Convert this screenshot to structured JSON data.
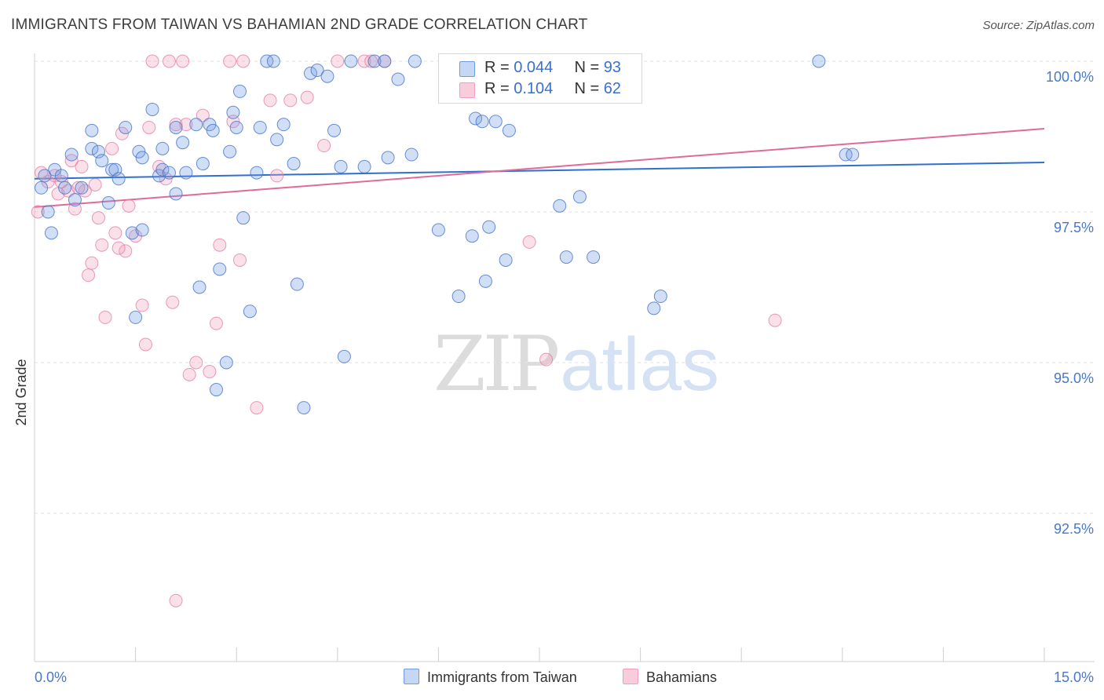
{
  "header": {
    "title": "IMMIGRANTS FROM TAIWAN VS BAHAMIAN 2ND GRADE CORRELATION CHART",
    "source": "Source: ZipAtlas.com"
  },
  "legend": {
    "series1": {
      "r_label": "R = ",
      "r_value": "0.044",
      "n_label": "N = ",
      "n_value": "93"
    },
    "series2": {
      "r_label": "R = ",
      "r_value": "0.104",
      "n_label": "N = ",
      "n_value": "62"
    }
  },
  "watermark": {
    "zip": "ZIP",
    "atlas": "atlas"
  },
  "chart_data": {
    "type": "scatter",
    "title": "IMMIGRANTS FROM TAIWAN VS BAHAMIAN 2ND GRADE CORRELATION CHART",
    "xlabel": "",
    "ylabel": "2nd Grade",
    "xlim": [
      0,
      15
    ],
    "ylim": [
      90.0,
      100.5
    ],
    "x_tick_labels": [
      "0.0%",
      "15.0%"
    ],
    "y_tick_labels": [
      "100.0%",
      "97.5%",
      "95.0%",
      "92.5%"
    ],
    "y_ticks": [
      100.0,
      97.5,
      95.0,
      92.5
    ],
    "grid": true,
    "legend_position": "top-center",
    "colors": {
      "taiwan": "#6f9be3",
      "bahamians": "#f0a0bc",
      "taiwan_line": "#2f6fcf",
      "bahamians_line": "#e06a98"
    },
    "series": [
      {
        "name": "Immigrants from Taiwan",
        "color": "#6f9be3",
        "trend": {
          "x": [
            0,
            15
          ],
          "y": [
            98.05,
            98.32
          ]
        },
        "points": [
          [
            0.1,
            97.9
          ],
          [
            0.15,
            98.1
          ],
          [
            0.2,
            97.5
          ],
          [
            0.25,
            97.15
          ],
          [
            0.3,
            98.2
          ],
          [
            0.4,
            98.1
          ],
          [
            0.45,
            97.9
          ],
          [
            0.55,
            98.45
          ],
          [
            0.6,
            97.7
          ],
          [
            0.7,
            97.9
          ],
          [
            0.85,
            98.85
          ],
          [
            0.85,
            98.55
          ],
          [
            0.95,
            98.5
          ],
          [
            1.0,
            98.35
          ],
          [
            1.1,
            97.65
          ],
          [
            1.15,
            98.2
          ],
          [
            1.2,
            98.2
          ],
          [
            1.25,
            98.05
          ],
          [
            1.35,
            98.9
          ],
          [
            1.45,
            97.15
          ],
          [
            1.5,
            95.75
          ],
          [
            1.55,
            98.5
          ],
          [
            1.6,
            97.2
          ],
          [
            1.6,
            98.4
          ],
          [
            1.75,
            99.2
          ],
          [
            1.85,
            98.1
          ],
          [
            1.9,
            98.55
          ],
          [
            1.9,
            98.2
          ],
          [
            2.0,
            98.15
          ],
          [
            2.1,
            98.9
          ],
          [
            2.1,
            97.8
          ],
          [
            2.2,
            98.65
          ],
          [
            2.25,
            98.15
          ],
          [
            2.4,
            98.95
          ],
          [
            2.45,
            96.25
          ],
          [
            2.5,
            98.3
          ],
          [
            2.6,
            98.95
          ],
          [
            2.65,
            98.85
          ],
          [
            2.7,
            94.55
          ],
          [
            2.75,
            96.55
          ],
          [
            2.85,
            95.0
          ],
          [
            2.9,
            98.5
          ],
          [
            2.95,
            99.15
          ],
          [
            3.05,
            99.5
          ],
          [
            3.1,
            97.4
          ],
          [
            3.2,
            95.85
          ],
          [
            3.3,
            98.15
          ],
          [
            3.35,
            98.9
          ],
          [
            3.45,
            100.0
          ],
          [
            3.55,
            100.0
          ],
          [
            3.6,
            98.7
          ],
          [
            3.7,
            98.95
          ],
          [
            3.85,
            98.3
          ],
          [
            3.9,
            96.3
          ],
          [
            4.0,
            94.25
          ],
          [
            4.1,
            99.8
          ],
          [
            4.2,
            99.85
          ],
          [
            4.35,
            99.75
          ],
          [
            4.45,
            98.85
          ],
          [
            4.55,
            98.25
          ],
          [
            4.6,
            95.1
          ],
          [
            4.7,
            100.0
          ],
          [
            4.9,
            98.25
          ],
          [
            5.05,
            100.0
          ],
          [
            5.2,
            100.0
          ],
          [
            5.25,
            98.4
          ],
          [
            5.4,
            99.7
          ],
          [
            5.6,
            98.45
          ],
          [
            6.0,
            97.2
          ],
          [
            6.3,
            96.1
          ],
          [
            6.5,
            97.1
          ],
          [
            6.55,
            99.05
          ],
          [
            6.65,
            99.0
          ],
          [
            6.7,
            96.35
          ],
          [
            6.75,
            97.25
          ],
          [
            6.85,
            99.0
          ],
          [
            7.0,
            96.7
          ],
          [
            7.05,
            98.85
          ],
          [
            7.45,
            100.0
          ],
          [
            7.8,
            97.6
          ],
          [
            7.9,
            96.75
          ],
          [
            8.1,
            97.75
          ],
          [
            8.3,
            96.75
          ],
          [
            9.2,
            95.9
          ],
          [
            9.3,
            96.1
          ],
          [
            11.65,
            100.0
          ],
          [
            12.05,
            98.45
          ],
          [
            12.15,
            98.45
          ],
          [
            5.65,
            100.0
          ],
          [
            3.0,
            98.9
          ]
        ]
      },
      {
        "name": "Bahamians",
        "color": "#f0a0bc",
        "trend": {
          "x": [
            0,
            15
          ],
          "y": [
            97.58,
            98.88
          ]
        },
        "points": [
          [
            0.05,
            97.5
          ],
          [
            0.1,
            98.15
          ],
          [
            0.2,
            98.0
          ],
          [
            0.3,
            98.1
          ],
          [
            0.35,
            97.8
          ],
          [
            0.5,
            97.85
          ],
          [
            0.55,
            98.35
          ],
          [
            0.6,
            97.55
          ],
          [
            0.7,
            98.25
          ],
          [
            0.75,
            97.85
          ],
          [
            0.8,
            96.45
          ],
          [
            0.85,
            96.65
          ],
          [
            0.9,
            97.95
          ],
          [
            0.95,
            97.4
          ],
          [
            1.0,
            96.95
          ],
          [
            1.05,
            95.75
          ],
          [
            1.15,
            98.55
          ],
          [
            1.2,
            97.15
          ],
          [
            1.3,
            98.8
          ],
          [
            1.35,
            96.85
          ],
          [
            1.4,
            97.6
          ],
          [
            1.5,
            97.1
          ],
          [
            1.6,
            95.95
          ],
          [
            1.65,
            95.3
          ],
          [
            1.7,
            98.9
          ],
          [
            1.75,
            100.0
          ],
          [
            1.85,
            98.25
          ],
          [
            1.95,
            98.05
          ],
          [
            2.0,
            100.0
          ],
          [
            2.05,
            96.0
          ],
          [
            2.1,
            98.95
          ],
          [
            2.2,
            100.0
          ],
          [
            2.3,
            94.8
          ],
          [
            2.4,
            95.0
          ],
          [
            2.5,
            99.1
          ],
          [
            2.6,
            94.85
          ],
          [
            2.7,
            95.65
          ],
          [
            2.75,
            96.95
          ],
          [
            2.9,
            100.0
          ],
          [
            2.95,
            99.0
          ],
          [
            3.05,
            96.7
          ],
          [
            3.1,
            100.0
          ],
          [
            3.3,
            94.25
          ],
          [
            3.5,
            99.35
          ],
          [
            3.6,
            98.1
          ],
          [
            3.8,
            99.35
          ],
          [
            4.05,
            99.4
          ],
          [
            4.3,
            98.6
          ],
          [
            4.5,
            100.0
          ],
          [
            4.9,
            100.0
          ],
          [
            5.0,
            100.0
          ],
          [
            5.2,
            100.0
          ],
          [
            6.25,
            100.0
          ],
          [
            6.4,
            100.0
          ],
          [
            7.35,
            97.0
          ],
          [
            7.6,
            95.05
          ],
          [
            11.0,
            95.7
          ],
          [
            2.1,
            91.05
          ],
          [
            0.4,
            98.0
          ],
          [
            0.65,
            97.9
          ],
          [
            1.25,
            96.9
          ],
          [
            2.25,
            98.95
          ]
        ]
      }
    ]
  },
  "bottom_legend": [
    {
      "label": "Immigrants from Taiwan"
    },
    {
      "label": "Bahamians"
    }
  ]
}
